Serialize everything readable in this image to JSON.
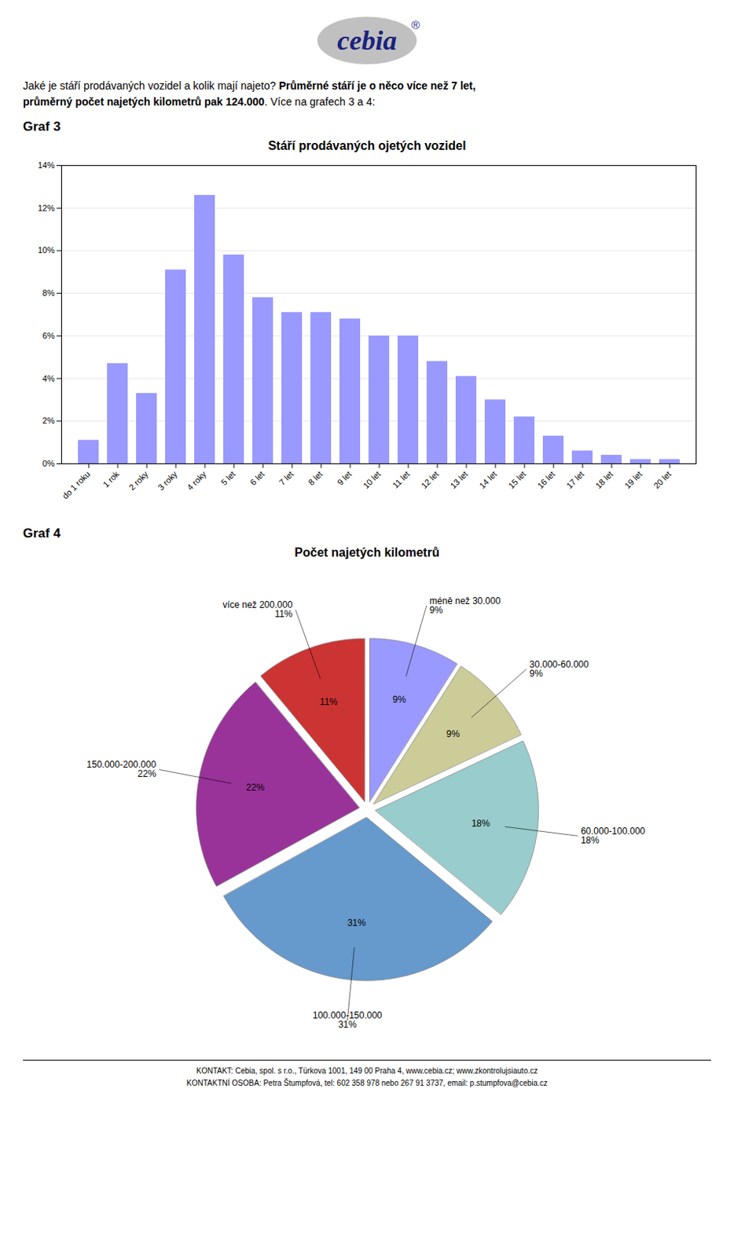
{
  "chart_data": [
    {
      "type": "bar",
      "title": "Stáří prodávaných ojetých vozidel",
      "annotations": [
        "cebia",
        "®",
        "Jaké je stáří prodávaných vozidel a kolik mají najeto? ",
        "Průměrné stáří je o něco více než 7 let,",
        "průměrný počet najetých kilometrů pak ",
        "124.000",
        ". Více na grafech 3 a 4:",
        "Graf 3"
      ],
      "categories": [
        "do 1 roku",
        "1 rok",
        "2 roky",
        "3 roky",
        "4 roky",
        "5 let",
        "6 let",
        "7 let",
        "8 let",
        "9 let",
        "10 let",
        "11 let",
        "12 let",
        "13 let",
        "14 let",
        "15 let",
        "16 let",
        "17 let",
        "18 let",
        "19 let",
        "20 let"
      ],
      "values": [
        0.011,
        0.047,
        0.033,
        0.091,
        0.126,
        0.098,
        0.078,
        0.071,
        0.071,
        0.068,
        0.06,
        0.06,
        0.048,
        0.041,
        0.03,
        0.022,
        0.013,
        0.006,
        0.004,
        0.002,
        0.002
      ],
      "color": "#9999FF",
      "ylim": [
        0,
        0.14
      ],
      "yticks": [
        {
          "value": 0.0,
          "label": "0%"
        },
        {
          "value": 0.02,
          "label": "2%"
        },
        {
          "value": 0.04,
          "label": "4%"
        },
        {
          "value": 0.06,
          "label": "6%"
        },
        {
          "value": 0.08,
          "label": "8%"
        },
        {
          "value": 0.1,
          "label": "10%"
        },
        {
          "value": 0.12,
          "label": "12%"
        },
        {
          "value": 0.14,
          "label": "14%"
        }
      ],
      "grid": true
    },
    {
      "type": "pie",
      "title": "Počet najetých kilometrů",
      "annotations": [
        "Graf 4",
        "KONTAKT: Cebia, spol. s r.o., Türkova 1001, 149 00 Praha 4, www.cebia.cz; www.zkontrolujsiauto.cz",
        "KONTAKTNÍ OSOBA: Petra Štumpfová, tel: 602 358 978 nebo 267 91 3737, email: p.stumpfova@cebia.cz"
      ],
      "categories": [
        "méně než 30.000",
        "30.000-60.000",
        "60.000-100.000",
        "100.000-150.000",
        "150.000-200.000",
        "více než 200.000"
      ],
      "values": [
        9,
        9,
        18,
        31,
        22,
        11
      ],
      "value_labels": [
        "9%",
        "9%",
        "18%",
        "31%",
        "22%",
        "11%"
      ],
      "colors": [
        "#9999FF",
        "#CCCC99",
        "#99CCCC",
        "#6699CC",
        "#993399",
        "#CC3333"
      ],
      "data_labels": true
    }
  ]
}
